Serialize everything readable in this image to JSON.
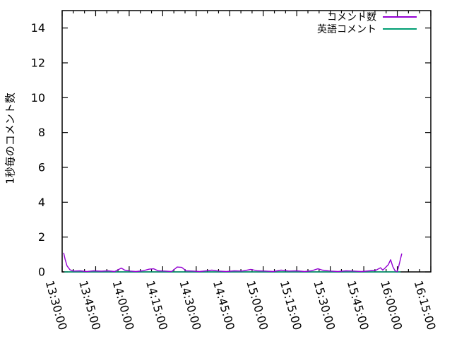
{
  "chart_data": {
    "type": "line",
    "title": "",
    "xlabel": "",
    "ylabel": "1秒毎のコメント数",
    "grid": false,
    "legend_position": "top-right-inside",
    "background_color": "#ffffff",
    "axis_color": "#000000",
    "ylim": [
      0,
      15
    ],
    "y_ticks": [
      "0",
      "2",
      "4",
      "6",
      "8",
      "10",
      "12",
      "14"
    ],
    "x_range": [
      "13:30:00",
      "16:15:00"
    ],
    "x_ticks": [
      "13:30:00",
      "13:45:00",
      "14:00:00",
      "14:15:00",
      "14:30:00",
      "14:45:00",
      "15:00:00",
      "15:15:00",
      "15:30:00",
      "15:45:00",
      "16:00:00",
      "16:15:00"
    ],
    "x_minor_tick_seconds": 300,
    "series": [
      {
        "name": "コメント数",
        "color": "#9400d3",
        "points": [
          [
            "13:30:40",
            1.1
          ],
          [
            "13:31:20",
            0.72
          ],
          [
            "13:32:10",
            0.35
          ],
          [
            "13:33:30",
            0.12
          ],
          [
            "13:35:00",
            0.05
          ],
          [
            "13:38:00",
            0.06
          ],
          [
            "13:41:00",
            0.02
          ],
          [
            "13:44:00",
            0.06
          ],
          [
            "13:47:30",
            0.04
          ],
          [
            "13:50:30",
            0.06
          ],
          [
            "13:53:30",
            0.02
          ],
          [
            "13:56:30",
            0.22
          ],
          [
            "13:58:00",
            0.1
          ],
          [
            "14:00:30",
            0.05
          ],
          [
            "14:03:00",
            0.02
          ],
          [
            "14:06:00",
            0.06
          ],
          [
            "14:09:00",
            0.16
          ],
          [
            "14:11:00",
            0.18
          ],
          [
            "14:13:00",
            0.06
          ],
          [
            "14:16:00",
            0.05
          ],
          [
            "14:19:00",
            0.02
          ],
          [
            "14:21:30",
            0.28
          ],
          [
            "14:23:30",
            0.26
          ],
          [
            "14:25:30",
            0.06
          ],
          [
            "14:28:30",
            0.05
          ],
          [
            "14:31:30",
            0.02
          ],
          [
            "14:34:30",
            0.06
          ],
          [
            "14:37:00",
            0.1
          ],
          [
            "14:40:00",
            0.05
          ],
          [
            "14:43:30",
            0.02
          ],
          [
            "14:47:00",
            0.06
          ],
          [
            "14:50:30",
            0.05
          ],
          [
            "14:54:30",
            0.14
          ],
          [
            "14:57:30",
            0.06
          ],
          [
            "15:01:00",
            0.05
          ],
          [
            "15:04:30",
            0.02
          ],
          [
            "15:08:00",
            0.1
          ],
          [
            "15:11:30",
            0.05
          ],
          [
            "15:15:00",
            0.06
          ],
          [
            "15:18:30",
            0.02
          ],
          [
            "15:21:30",
            0.06
          ],
          [
            "15:24:30",
            0.18
          ],
          [
            "15:26:30",
            0.1
          ],
          [
            "15:30:00",
            0.05
          ],
          [
            "15:33:30",
            0.02
          ],
          [
            "15:37:00",
            0.06
          ],
          [
            "15:40:30",
            0.05
          ],
          [
            "15:44:00",
            0.02
          ],
          [
            "15:47:30",
            0.06
          ],
          [
            "15:50:30",
            0.1
          ],
          [
            "15:52:30",
            0.24
          ],
          [
            "15:53:30",
            0.1
          ],
          [
            "15:54:30",
            0.22
          ],
          [
            "15:56:00",
            0.42
          ],
          [
            "15:57:00",
            0.7
          ],
          [
            "15:58:00",
            0.3
          ],
          [
            "15:59:00",
            0.06
          ],
          [
            "16:00:00",
            0.02
          ],
          [
            "16:00:40",
            0.35
          ],
          [
            "16:02:00",
            1.05
          ]
        ]
      },
      {
        "name": "英語コメント",
        "color": "#009e73",
        "points": [
          [
            "13:31:00",
            0.0
          ],
          [
            "16:01:30",
            0.0
          ]
        ]
      }
    ]
  }
}
